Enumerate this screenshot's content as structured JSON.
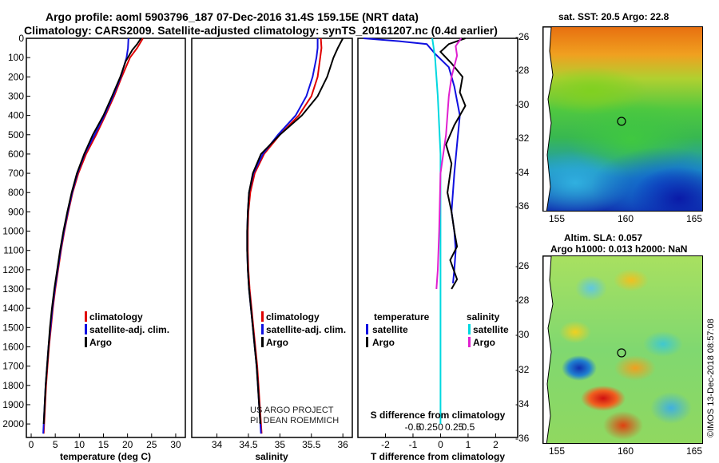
{
  "header": {
    "title_line1": "Argo profile: aoml 5903796_187 07-Dec-2016 31.4S 159.15E (NRT data)",
    "title_line2": "Climatology: CARS2009. Satellite-adjusted climatology: synTS_20161207.nc (0.4d earlier)"
  },
  "colors": {
    "climatology": "#e00000",
    "satellite": "#1010e0",
    "argo": "#000000",
    "t_sat": "#1010e0",
    "s_sat": "#00d8e0",
    "s_argo": "#e020d0"
  },
  "legends": {
    "temp": [
      "climatology",
      "satellite-adj. clim.",
      "Argo"
    ],
    "sal": [
      "climatology",
      "satellite-adj. clim.",
      "Argo"
    ],
    "diff_temp_heading": "temperature",
    "diff_sal_heading": "salinity",
    "diff_temp": [
      "satellite",
      "Argo"
    ],
    "diff_sal": [
      "satellite",
      "Argo"
    ]
  },
  "credits": {
    "project": "US ARGO PROJECT",
    "pi": "PI: DEAN ROEMMICH",
    "imos": "©IMOS 13-Dec-2018 08:57:08"
  },
  "maps": {
    "sst": {
      "title": "sat. SST: 20.5  Argo: 22.8",
      "lat_ticks": [
        "-26",
        "-28",
        "-30",
        "-32",
        "-34",
        "-36"
      ],
      "lon_ticks": [
        "155",
        "160",
        "165"
      ]
    },
    "sla": {
      "title_line1": "Altim. SLA: 0.057",
      "title_line2": "Argo h1000: 0.013 h2000: NaN",
      "lat_ticks": [
        "-26",
        "-28",
        "-30",
        "-32",
        "-34",
        "-36"
      ],
      "lon_ticks": [
        "155",
        "160",
        "165"
      ]
    }
  },
  "chart_data": [
    {
      "type": "line",
      "xlabel": "temperature (deg C)",
      "ylabel": "",
      "xlim": [
        -1,
        32
      ],
      "ylim": [
        2070,
        0
      ],
      "x_ticks": [
        0,
        5,
        10,
        15,
        20,
        25,
        30
      ],
      "y_ticks": [
        0,
        100,
        200,
        300,
        400,
        500,
        600,
        700,
        800,
        900,
        1000,
        1100,
        1200,
        1300,
        1400,
        1500,
        1600,
        1700,
        1800,
        1900,
        2000
      ],
      "series": [
        {
          "name": "climatology",
          "color": "#e00000",
          "points": [
            [
              23.2,
              0
            ],
            [
              22,
              50
            ],
            [
              20.5,
              100
            ],
            [
              18.8,
              200
            ],
            [
              17.2,
              300
            ],
            [
              15.4,
              400
            ],
            [
              13.5,
              500
            ],
            [
              11.4,
              600
            ],
            [
              9.8,
              700
            ],
            [
              8.6,
              800
            ],
            [
              7.7,
              900
            ],
            [
              6.9,
              1000
            ],
            [
              6.2,
              1100
            ],
            [
              5.6,
              1200
            ],
            [
              5.0,
              1300
            ],
            [
              4.5,
              1400
            ],
            [
              4.1,
              1500
            ],
            [
              3.7,
              1600
            ],
            [
              3.4,
              1700
            ],
            [
              3.1,
              1800
            ],
            [
              2.9,
              1900
            ],
            [
              2.7,
              2000
            ],
            [
              2.6,
              2050
            ]
          ]
        },
        {
          "name": "satellite-adj. clim.",
          "color": "#1010e0",
          "points": [
            [
              20.2,
              0
            ],
            [
              20.1,
              50
            ],
            [
              19.8,
              100
            ],
            [
              18.6,
              200
            ],
            [
              17.0,
              300
            ],
            [
              15.2,
              400
            ],
            [
              13.2,
              500
            ],
            [
              11.1,
              600
            ],
            [
              9.6,
              700
            ],
            [
              8.5,
              800
            ],
            [
              7.6,
              900
            ],
            [
              6.8,
              1000
            ],
            [
              6.1,
              1100
            ],
            [
              5.5,
              1200
            ],
            [
              4.9,
              1300
            ],
            [
              4.4,
              1400
            ],
            [
              4.0,
              1500
            ],
            [
              3.6,
              1600
            ],
            [
              3.3,
              1700
            ],
            [
              3.0,
              1800
            ],
            [
              2.8,
              1900
            ],
            [
              2.6,
              2000
            ],
            [
              2.5,
              2050
            ]
          ]
        },
        {
          "name": "Argo",
          "color": "#000000",
          "points": [
            [
              22.8,
              0
            ],
            [
              22.0,
              30
            ],
            [
              21.0,
              60
            ],
            [
              19.6,
              120
            ],
            [
              18.5,
              200
            ],
            [
              16.8,
              300
            ],
            [
              15.0,
              400
            ],
            [
              12.8,
              500
            ],
            [
              11.0,
              600
            ],
            [
              9.5,
              700
            ],
            [
              8.4,
              800
            ],
            [
              7.5,
              900
            ],
            [
              6.7,
              1000
            ],
            [
              6.0,
              1100
            ],
            [
              5.4,
              1200
            ],
            [
              4.8,
              1300
            ],
            [
              4.3,
              1400
            ],
            [
              3.9,
              1500
            ],
            [
              3.6,
              1600
            ],
            [
              3.3,
              1700
            ],
            [
              3.0,
              1800
            ],
            [
              2.8,
              1900
            ],
            [
              2.6,
              2000
            ]
          ]
        }
      ]
    },
    {
      "type": "line",
      "xlabel": "salinity",
      "ylabel": "",
      "xlim": [
        33.6,
        36.15
      ],
      "ylim": [
        2070,
        0
      ],
      "x_ticks": [
        34,
        34.5,
        35,
        35.5,
        36
      ],
      "series": [
        {
          "name": "climatology",
          "color": "#e00000",
          "points": [
            [
              35.65,
              0
            ],
            [
              35.66,
              50
            ],
            [
              35.64,
              100
            ],
            [
              35.6,
              200
            ],
            [
              35.5,
              300
            ],
            [
              35.3,
              400
            ],
            [
              35.0,
              500
            ],
            [
              34.75,
              600
            ],
            [
              34.6,
              700
            ],
            [
              34.53,
              800
            ],
            [
              34.5,
              900
            ],
            [
              34.49,
              1000
            ],
            [
              34.49,
              1100
            ],
            [
              34.5,
              1200
            ],
            [
              34.52,
              1300
            ],
            [
              34.55,
              1400
            ],
            [
              34.58,
              1500
            ],
            [
              34.61,
              1600
            ],
            [
              34.64,
              1700
            ],
            [
              34.66,
              1800
            ],
            [
              34.68,
              1900
            ],
            [
              34.7,
              2000
            ],
            [
              34.71,
              2050
            ]
          ]
        },
        {
          "name": "satellite-adj. clim.",
          "color": "#1010e0",
          "points": [
            [
              35.6,
              0
            ],
            [
              35.6,
              50
            ],
            [
              35.58,
              100
            ],
            [
              35.52,
              200
            ],
            [
              35.42,
              300
            ],
            [
              35.25,
              400
            ],
            [
              34.97,
              500
            ],
            [
              34.73,
              600
            ],
            [
              34.58,
              700
            ],
            [
              34.51,
              800
            ],
            [
              34.49,
              900
            ],
            [
              34.48,
              1000
            ],
            [
              34.48,
              1100
            ],
            [
              34.49,
              1200
            ],
            [
              34.51,
              1300
            ],
            [
              34.54,
              1400
            ],
            [
              34.57,
              1500
            ],
            [
              34.6,
              1600
            ],
            [
              34.63,
              1700
            ],
            [
              34.65,
              1800
            ],
            [
              34.67,
              1900
            ],
            [
              34.69,
              2000
            ],
            [
              34.7,
              2050
            ]
          ]
        },
        {
          "name": "Argo",
          "color": "#000000",
          "points": [
            [
              36.0,
              0
            ],
            [
              35.92,
              50
            ],
            [
              35.85,
              100
            ],
            [
              35.75,
              200
            ],
            [
              35.6,
              300
            ],
            [
              35.35,
              400
            ],
            [
              35.0,
              500
            ],
            [
              34.7,
              600
            ],
            [
              34.57,
              700
            ],
            [
              34.51,
              800
            ],
            [
              34.49,
              900
            ],
            [
              34.48,
              1000
            ],
            [
              34.48,
              1100
            ],
            [
              34.49,
              1200
            ],
            [
              34.51,
              1300
            ],
            [
              34.54,
              1400
            ],
            [
              34.57,
              1500
            ],
            [
              34.6,
              1600
            ],
            [
              34.63,
              1700
            ],
            [
              34.65,
              1800
            ],
            [
              34.67,
              1900
            ],
            [
              34.69,
              2000
            ]
          ]
        }
      ]
    },
    {
      "type": "line",
      "xlabel": "T difference from climatology",
      "xlabel_top": "S difference from climatology",
      "xlim": [
        -3,
        2.8
      ],
      "ylim": [
        2070,
        0
      ],
      "x_ticks": [
        -2,
        -1,
        0,
        1,
        2
      ],
      "x_ticks_top": [
        "-0.5",
        "-0.25",
        "0",
        "0.25",
        "0.5"
      ],
      "series": [
        {
          "name": "temperature satellite",
          "color": "#1010e0",
          "points": [
            [
              -2.8,
              0
            ],
            [
              -1.5,
              15
            ],
            [
              -0.5,
              30
            ],
            [
              -0.2,
              80
            ],
            [
              0.3,
              150
            ],
            [
              0.5,
              250
            ],
            [
              0.7,
              400
            ],
            [
              0.6,
              550
            ],
            [
              0.5,
              700
            ],
            [
              0.4,
              900
            ],
            [
              0.5,
              1000
            ],
            [
              0.55,
              1100
            ],
            [
              0.5,
              1200
            ],
            [
              0.45,
              1270
            ]
          ]
        },
        {
          "name": "temperature Argo",
          "color": "#000000",
          "points": [
            [
              0.9,
              0
            ],
            [
              0.3,
              30
            ],
            [
              0.0,
              70
            ],
            [
              0.4,
              130
            ],
            [
              0.8,
              200
            ],
            [
              0.7,
              280
            ],
            [
              0.9,
              350
            ],
            [
              0.5,
              450
            ],
            [
              0.2,
              550
            ],
            [
              0.4,
              650
            ],
            [
              0.25,
              800
            ],
            [
              0.4,
              900
            ],
            [
              0.5,
              1000
            ],
            [
              0.6,
              1080
            ],
            [
              0.35,
              1150
            ],
            [
              0.6,
              1250
            ],
            [
              0.4,
              1300
            ]
          ]
        },
        {
          "name": "salinity satellite",
          "color": "#00d8e0",
          "points": [
            [
              -0.3,
              0
            ],
            [
              -0.2,
              100
            ],
            [
              -0.1,
              300
            ],
            [
              0.0,
              600
            ],
            [
              0.0,
              1000
            ],
            [
              0.0,
              1500
            ],
            [
              0.0,
              2000
            ]
          ]
        },
        {
          "name": "salinity Argo",
          "color": "#e020d0",
          "points": [
            [
              0.75,
              0
            ],
            [
              0.55,
              40
            ],
            [
              0.6,
              90
            ],
            [
              0.4,
              200
            ],
            [
              0.3,
              300
            ],
            [
              0.2,
              500
            ],
            [
              0.0,
              700
            ],
            [
              -0.05,
              1000
            ],
            [
              -0.1,
              1200
            ],
            [
              -0.15,
              1300
            ]
          ]
        }
      ]
    }
  ]
}
